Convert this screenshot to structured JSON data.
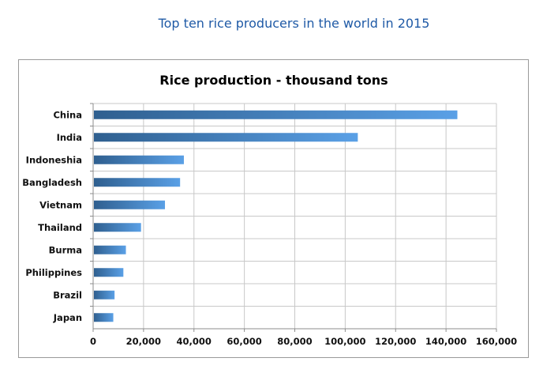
{
  "page": {
    "heading": "Top ten rice producers in the world in 2015"
  },
  "colors": {
    "heading": "#1f5aa6",
    "bar_dark": "#2f5f8f",
    "bar_light": "#5aa0e6",
    "grid": "#c8c8c8",
    "axis": "#8c8c8c"
  },
  "chart_data": {
    "type": "bar",
    "orientation": "horizontal",
    "title": "Rice production - thousand tons",
    "categories": [
      "China",
      "India",
      "Indoneshia",
      "Bangladesh",
      "Vietnam",
      "Thailand",
      "Burma",
      "Philippines",
      "Brazil",
      "Japan"
    ],
    "values": [
      144500,
      105000,
      36000,
      34500,
      28500,
      19000,
      13000,
      12000,
      8500,
      8000
    ],
    "xlim": [
      0,
      160000
    ],
    "xticks": [
      0,
      20000,
      40000,
      60000,
      80000,
      100000,
      120000,
      140000,
      160000
    ],
    "xtick_labels": [
      "0",
      "20,000",
      "40,000",
      "60,000",
      "80,000",
      "100,000",
      "120,000",
      "140,000",
      "160,000"
    ],
    "xlabel": "",
    "ylabel": "",
    "grid": true,
    "legend": false
  }
}
